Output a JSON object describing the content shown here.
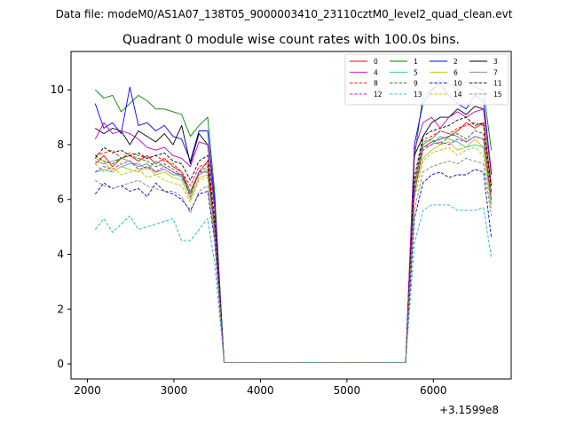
{
  "chart_data": {
    "type": "line",
    "suptitle": "Data file: modeM0/AS1A07_138T05_9000003410_23110cztM0_level2_quad_clean.evt",
    "title": "Quadrant 0 module wise count rates with 100.0s bins.",
    "xlabel": "",
    "ylabel": "",
    "offset_label": "+3.1599e8",
    "xlim": [
      1810,
      6900
    ],
    "ylim": [
      -0.55,
      11.4
    ],
    "xticks": [
      2000,
      3000,
      4000,
      5000,
      6000
    ],
    "yticks": [
      0,
      2,
      4,
      6,
      8,
      10
    ],
    "x_seg1": [
      2090,
      2190,
      2290,
      2390,
      2490,
      2590,
      2690,
      2790,
      2890,
      2990,
      3090,
      3190,
      3290,
      3390,
      3470,
      3580
    ],
    "x_seg2": [
      5680,
      5780,
      5880,
      5980,
      6080,
      6180,
      6280,
      6380,
      6480,
      6580,
      6670
    ],
    "zero_mid_x": [
      3680,
      3780,
      3880,
      3980,
      4080,
      4180,
      4280,
      4380,
      4480,
      4580,
      4680,
      4780,
      4880,
      4980,
      5080,
      5180,
      5280,
      5380,
      5480,
      5580
    ],
    "legend": {
      "location": "top-right",
      "columns": 4
    },
    "series": [
      {
        "name": "0",
        "color": "#ff0000",
        "dash": "solid",
        "seg1": [
          7.3,
          7.6,
          7.2,
          7.5,
          7.6,
          7.4,
          7.6,
          7.3,
          7.5,
          7.2,
          7.0,
          6.3,
          7.0,
          7.4,
          5.0,
          0.05
        ],
        "seg2": [
          0.05,
          6.2,
          7.9,
          8.1,
          8.2,
          8.3,
          8.5,
          8.8,
          8.6,
          8.8,
          6.5
        ]
      },
      {
        "name": "1",
        "color": "#008000",
        "dash": "solid",
        "seg1": [
          10.0,
          9.7,
          9.8,
          9.2,
          9.5,
          9.8,
          9.6,
          9.3,
          9.3,
          9.2,
          9.1,
          8.3,
          8.7,
          9.0,
          6.3,
          0.05
        ],
        "seg2": [
          0.05,
          7.5,
          9.8,
          10.0,
          10.4,
          10.2,
          10.0,
          10.3,
          10.1,
          10.0,
          7.8
        ]
      },
      {
        "name": "2",
        "color": "#0000ff",
        "dash": "solid",
        "seg1": [
          9.5,
          8.6,
          8.8,
          8.4,
          10.1,
          8.7,
          8.8,
          8.5,
          8.7,
          8.3,
          8.2,
          7.4,
          8.5,
          8.5,
          6.0,
          0.05
        ],
        "seg2": [
          0.05,
          8.0,
          9.5,
          10.0,
          10.2,
          9.8,
          9.5,
          9.3,
          9.8,
          9.6,
          7.0
        ]
      },
      {
        "name": "3",
        "color": "#000000",
        "dash": "solid",
        "seg1": [
          8.6,
          8.4,
          8.6,
          8.5,
          8.0,
          8.5,
          8.3,
          8.1,
          8.4,
          8.0,
          8.7,
          7.3,
          8.4,
          8.0,
          5.7,
          0.05
        ],
        "seg2": [
          0.05,
          7.6,
          8.3,
          8.8,
          9.0,
          9.0,
          9.3,
          9.1,
          9.4,
          9.3,
          6.9
        ]
      },
      {
        "name": "4",
        "color": "#c000c0",
        "dash": "solid",
        "seg1": [
          8.2,
          8.8,
          8.4,
          8.5,
          8.4,
          8.2,
          7.9,
          7.8,
          7.9,
          7.6,
          7.5,
          7.2,
          8.1,
          8.0,
          5.8,
          0.05
        ],
        "seg2": [
          0.05,
          7.8,
          8.8,
          9.0,
          8.6,
          9.0,
          9.2,
          9.0,
          9.2,
          9.3,
          7.0
        ]
      },
      {
        "name": "5",
        "color": "#17c4a0",
        "dash": "solid",
        "seg1": [
          7.0,
          7.1,
          7.0,
          7.2,
          7.3,
          7.3,
          7.1,
          7.4,
          7.2,
          7.0,
          6.8,
          6.2,
          7.0,
          7.0,
          4.9,
          0.05
        ],
        "seg2": [
          0.05,
          6.1,
          7.9,
          8.0,
          8.3,
          8.2,
          8.1,
          7.9,
          8.0,
          7.9,
          5.8
        ]
      },
      {
        "name": "6",
        "color": "#bfbf00",
        "dash": "solid",
        "seg1": [
          7.5,
          7.4,
          7.0,
          7.2,
          7.1,
          7.0,
          7.2,
          6.9,
          7.0,
          6.8,
          6.7,
          6.0,
          6.8,
          6.9,
          4.8,
          0.05
        ],
        "seg2": [
          0.05,
          6.3,
          7.5,
          7.8,
          8.0,
          8.1,
          7.8,
          7.9,
          8.2,
          7.9,
          5.9
        ]
      },
      {
        "name": "7",
        "color": "#808080",
        "dash": "solid",
        "seg1": [
          7.4,
          7.3,
          7.4,
          7.5,
          7.4,
          7.2,
          7.3,
          7.0,
          7.1,
          6.9,
          6.9,
          6.3,
          6.9,
          7.1,
          5.0,
          0.05
        ],
        "seg2": [
          0.05,
          6.5,
          8.0,
          8.2,
          8.5,
          8.4,
          8.3,
          8.1,
          8.3,
          8.2,
          6.0
        ]
      },
      {
        "name": "8",
        "color": "#ff0000",
        "dash": "dashed",
        "seg1": [
          7.6,
          7.7,
          7.8,
          7.5,
          7.7,
          7.6,
          7.5,
          7.6,
          7.4,
          7.3,
          7.0,
          6.5,
          7.2,
          7.3,
          5.0,
          0.05
        ],
        "seg2": [
          0.05,
          6.6,
          8.2,
          8.3,
          8.5,
          8.4,
          8.6,
          8.7,
          8.8,
          8.7,
          6.3
        ]
      },
      {
        "name": "9",
        "color": "#008000",
        "dash": "dashed",
        "seg1": [
          7.6,
          7.4,
          7.3,
          7.5,
          7.6,
          7.5,
          7.4,
          7.2,
          7.3,
          7.1,
          6.9,
          6.2,
          7.0,
          7.2,
          5.0,
          0.05
        ],
        "seg2": [
          0.05,
          6.5,
          8.1,
          8.2,
          8.0,
          8.3,
          8.4,
          8.2,
          8.5,
          8.4,
          6.2
        ]
      },
      {
        "name": "10",
        "color": "#0000cc",
        "dash": "dashed",
        "seg1": [
          6.2,
          6.6,
          6.4,
          6.5,
          6.3,
          6.4,
          6.1,
          6.6,
          6.3,
          6.2,
          6.0,
          5.6,
          6.2,
          6.3,
          4.5,
          0.05
        ],
        "seg2": [
          0.05,
          5.3,
          6.6,
          6.9,
          7.0,
          6.8,
          6.9,
          6.9,
          7.1,
          7.0,
          4.6
        ]
      },
      {
        "name": "11",
        "color": "#000000",
        "dash": "dashed",
        "seg1": [
          7.5,
          7.9,
          7.7,
          7.8,
          7.6,
          7.7,
          7.5,
          7.6,
          7.7,
          7.4,
          7.3,
          6.7,
          7.4,
          7.6,
          5.3,
          0.05
        ],
        "seg2": [
          0.05,
          6.8,
          8.3,
          8.5,
          8.6,
          8.7,
          8.9,
          9.0,
          8.7,
          8.8,
          6.5
        ]
      },
      {
        "name": "12",
        "color": "#c000c0",
        "dash": "dashed",
        "seg1": [
          7.0,
          7.2,
          7.1,
          7.3,
          7.4,
          7.1,
          7.2,
          7.0,
          7.2,
          7.0,
          6.9,
          6.1,
          7.0,
          7.0,
          4.9,
          0.05
        ],
        "seg2": [
          0.05,
          6.3,
          7.8,
          8.0,
          8.1,
          8.0,
          8.2,
          8.1,
          8.3,
          8.2,
          6.0
        ]
      },
      {
        "name": "13",
        "color": "#17b8c4",
        "dash": "dashed",
        "seg1": [
          4.9,
          5.3,
          4.8,
          5.1,
          5.4,
          4.9,
          5.0,
          5.1,
          5.2,
          5.3,
          4.5,
          4.5,
          4.9,
          5.3,
          3.7,
          0.05
        ],
        "seg2": [
          0.05,
          4.4,
          5.6,
          5.8,
          5.8,
          5.8,
          5.6,
          5.6,
          5.6,
          5.7,
          3.9
        ]
      },
      {
        "name": "14",
        "color": "#bfbf00",
        "dash": "dashed",
        "seg1": [
          7.3,
          7.0,
          7.2,
          6.9,
          7.0,
          7.1,
          6.8,
          6.9,
          6.7,
          6.6,
          6.5,
          5.9,
          6.7,
          6.8,
          4.7,
          0.05
        ],
        "seg2": [
          0.05,
          6.0,
          7.4,
          7.7,
          7.8,
          7.9,
          7.6,
          7.8,
          7.9,
          7.6,
          5.6
        ]
      },
      {
        "name": "15",
        "color": "#808080",
        "dash": "dashed",
        "seg1": [
          6.7,
          6.5,
          6.4,
          6.5,
          6.6,
          6.7,
          6.5,
          6.4,
          6.3,
          6.3,
          6.1,
          5.5,
          6.3,
          6.5,
          4.6,
          0.05
        ],
        "seg2": [
          0.05,
          5.6,
          7.0,
          7.2,
          7.3,
          7.4,
          7.3,
          7.5,
          7.4,
          7.3,
          5.4
        ]
      }
    ]
  }
}
